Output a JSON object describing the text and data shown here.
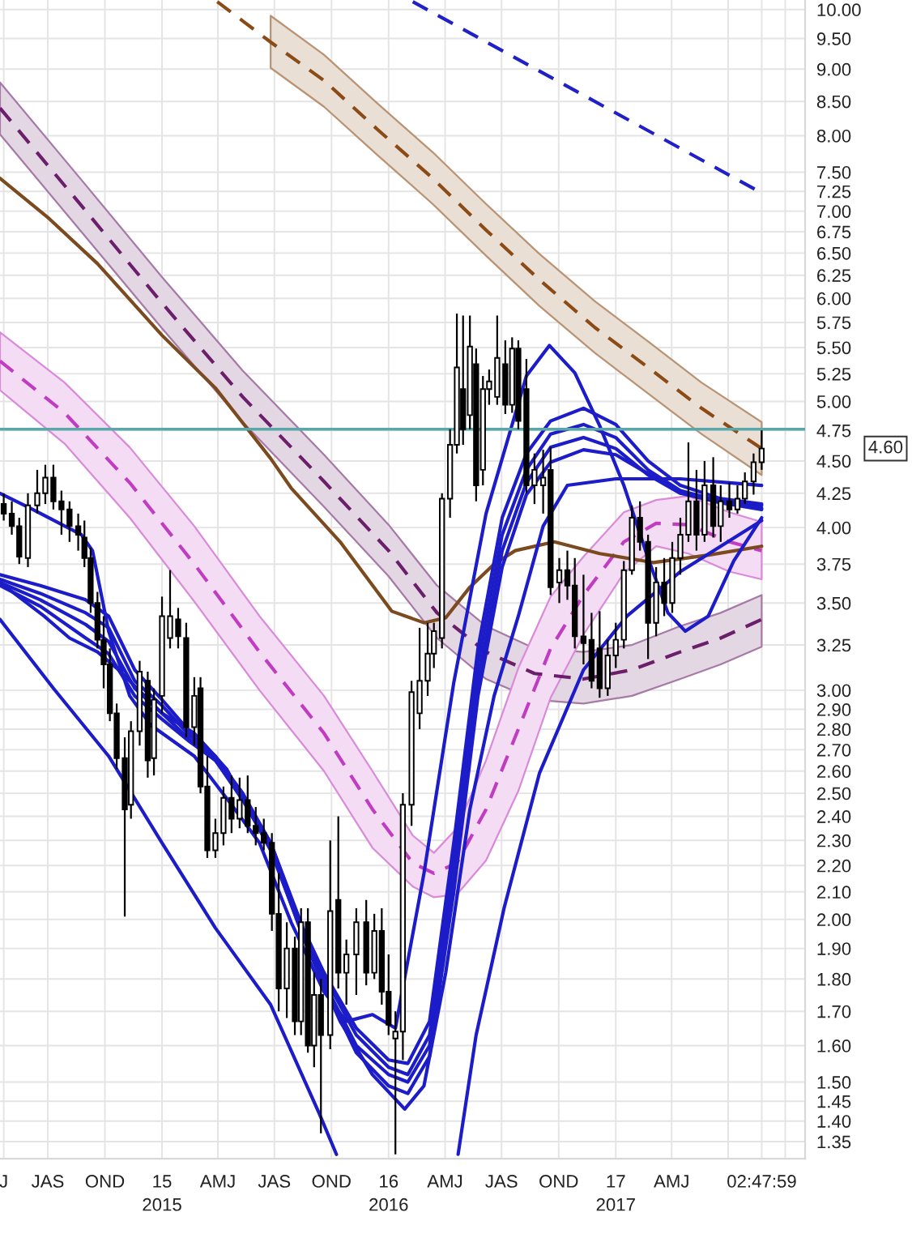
{
  "chart_data": {
    "type": "candlestick",
    "color": "#000000",
    "x": [
      "2014-04-21",
      "2014-05-04",
      "2014-05-16",
      "2014-05-30",
      "2014-06-14",
      "2014-06-27",
      "2014-07-10",
      "2014-07-23",
      "2014-08-05",
      "2014-08-19",
      "2014-08-29",
      "2014-09-08",
      "2014-09-19",
      "2014-09-29",
      "2014-10-09",
      "2014-10-20",
      "2014-11-02",
      "2014-11-12",
      "2014-11-26",
      "2014-12-09",
      "2014-12-19",
      "2015-01-01",
      "2015-01-14",
      "2015-01-27",
      "2015-02-09",
      "2015-02-22",
      "2015-03-04",
      "2015-03-15",
      "2015-03-28",
      "2015-04-10",
      "2015-04-23",
      "2015-05-06",
      "2015-05-19",
      "2015-06-01",
      "2015-06-14",
      "2015-06-27",
      "2015-07-08",
      "2015-07-21",
      "2015-08-03",
      "2015-08-13",
      "2015-08-24",
      "2015-09-03",
      "2015-09-14",
      "2015-09-29",
      "2015-10-12",
      "2015-10-25",
      "2015-11-10",
      "2015-11-26",
      "2015-12-09",
      "2015-12-21",
      "2016-01-01",
      "2016-01-12",
      "2016-01-24",
      "2016-02-07",
      "2016-02-20",
      "2016-03-04",
      "2016-03-14",
      "2016-03-27",
      "2016-04-09",
      "2016-04-20",
      "2016-04-30",
      "2016-05-11",
      "2016-05-21",
      "2016-06-01",
      "2016-06-11",
      "2016-06-24",
      "2016-07-07",
      "2016-07-18",
      "2016-07-28",
      "2016-08-10",
      "2016-08-23",
      "2016-09-06",
      "2016-09-18",
      "2016-10-02",
      "2016-10-15",
      "2016-10-27",
      "2016-11-10",
      "2016-11-23",
      "2016-12-06",
      "2016-12-19",
      "2017-01-01",
      "2017-01-14",
      "2017-01-27",
      "2017-02-09",
      "2017-02-22",
      "2017-03-07",
      "2017-03-20",
      "2017-04-02",
      "2017-04-15",
      "2017-04-28",
      "2017-05-11",
      "2017-05-24",
      "2017-06-07",
      "2017-06-19",
      "2017-07-03",
      "2017-07-16",
      "2017-07-28",
      "2017-08-11",
      "2017-08-24"
    ],
    "ohlc": [
      [
        4.17,
        4.25,
        4.05,
        4.1
      ],
      [
        4.1,
        4.19,
        3.95,
        4.01
      ],
      [
        4.01,
        4.07,
        3.75,
        3.8
      ],
      [
        3.79,
        4.25,
        3.73,
        4.16
      ],
      [
        4.16,
        4.43,
        4.1,
        4.25
      ],
      [
        4.25,
        4.47,
        4.17,
        4.37
      ],
      [
        4.37,
        4.47,
        4.13,
        4.19
      ],
      [
        4.19,
        4.27,
        3.95,
        4.13
      ],
      [
        4.13,
        4.19,
        3.9,
        4.01
      ],
      [
        4.01,
        4.1,
        3.84,
        3.95
      ],
      [
        3.93,
        4.05,
        3.73,
        3.79
      ],
      [
        3.79,
        3.86,
        3.44,
        3.5
      ],
      [
        3.5,
        3.57,
        3.23,
        3.28
      ],
      [
        3.28,
        3.42,
        3.01,
        3.14
      ],
      [
        3.14,
        3.23,
        2.84,
        2.88
      ],
      [
        2.88,
        2.93,
        2.61,
        2.66
      ],
      [
        2.66,
        2.76,
        2.01,
        2.43
      ],
      [
        2.45,
        2.84,
        2.39,
        2.79
      ],
      [
        2.79,
        3.16,
        2.72,
        3.1
      ],
      [
        3.05,
        3.1,
        2.57,
        2.65
      ],
      [
        2.66,
        3.01,
        2.58,
        2.95
      ],
      [
        2.97,
        3.54,
        2.88,
        3.42
      ],
      [
        3.29,
        3.71,
        3.23,
        3.42
      ],
      [
        3.4,
        3.47,
        3.23,
        3.3
      ],
      [
        3.29,
        3.38,
        2.76,
        2.81
      ],
      [
        2.81,
        3.07,
        2.72,
        2.97
      ],
      [
        3.01,
        3.07,
        2.5,
        2.53
      ],
      [
        2.53,
        2.67,
        2.23,
        2.26
      ],
      [
        2.26,
        2.39,
        2.23,
        2.33
      ],
      [
        2.33,
        2.53,
        2.28,
        2.48
      ],
      [
        2.48,
        2.58,
        2.33,
        2.39
      ],
      [
        2.39,
        2.57,
        2.35,
        2.47
      ],
      [
        2.47,
        2.58,
        2.33,
        2.36
      ],
      [
        2.36,
        2.44,
        2.28,
        2.33
      ],
      [
        2.33,
        2.39,
        2.26,
        2.29
      ],
      [
        2.29,
        2.33,
        1.96,
        2.02
      ],
      [
        2.02,
        2.17,
        1.7,
        1.77
      ],
      [
        1.77,
        1.99,
        1.68,
        1.9
      ],
      [
        1.9,
        1.94,
        1.63,
        1.67
      ],
      [
        1.67,
        2.04,
        1.63,
        1.99
      ],
      [
        1.99,
        2.04,
        1.58,
        1.6
      ],
      [
        1.6,
        1.82,
        1.54,
        1.75
      ],
      [
        1.75,
        1.8,
        1.37,
        1.63
      ],
      [
        1.63,
        2.3,
        1.59,
        2.03
      ],
      [
        2.07,
        2.4,
        1.77,
        1.82
      ],
      [
        1.82,
        1.93,
        1.72,
        1.88
      ],
      [
        1.88,
        2.04,
        1.75,
        1.99
      ],
      [
        1.99,
        2.07,
        1.78,
        1.82
      ],
      [
        1.82,
        2.02,
        1.8,
        1.96
      ],
      [
        1.96,
        2.04,
        1.72,
        1.76
      ],
      [
        1.76,
        1.88,
        1.63,
        1.66
      ],
      [
        1.62,
        1.7,
        1.32,
        1.64
      ],
      [
        1.64,
        2.5,
        1.56,
        2.45
      ],
      [
        2.45,
        3.05,
        2.36,
        2.99
      ],
      [
        2.88,
        3.35,
        2.8,
        3.05
      ],
      [
        3.05,
        3.38,
        2.97,
        3.2
      ],
      [
        3.2,
        3.38,
        3.12,
        3.33
      ],
      [
        3.29,
        4.25,
        3.23,
        4.21
      ],
      [
        4.21,
        4.76,
        4.07,
        4.63
      ],
      [
        4.63,
        5.84,
        4.56,
        5.31
      ],
      [
        5.11,
        5.82,
        4.63,
        4.76
      ],
      [
        4.88,
        5.82,
        4.76,
        5.51
      ],
      [
        5.34,
        5.49,
        4.19,
        4.31
      ],
      [
        4.43,
        5.23,
        4.31,
        5.11
      ],
      [
        5.11,
        5.29,
        4.97,
        5.18
      ],
      [
        5.04,
        5.82,
        4.97,
        5.4
      ],
      [
        5.34,
        5.57,
        4.89,
        4.97
      ],
      [
        4.97,
        5.6,
        4.9,
        5.49
      ],
      [
        5.49,
        5.57,
        4.76,
        4.83
      ],
      [
        5.11,
        5.39,
        4.25,
        4.31
      ],
      [
        4.31,
        4.56,
        4.17,
        4.43
      ],
      [
        4.31,
        4.59,
        4.1,
        4.37
      ],
      [
        4.43,
        4.61,
        3.55,
        3.6
      ],
      [
        3.63,
        3.79,
        3.5,
        3.71
      ],
      [
        3.71,
        3.84,
        3.52,
        3.61
      ],
      [
        3.61,
        3.79,
        3.23,
        3.3
      ],
      [
        3.3,
        3.68,
        3.14,
        3.26
      ],
      [
        3.28,
        3.44,
        3.01,
        3.05
      ],
      [
        3.23,
        3.45,
        2.96,
        3.01
      ],
      [
        3.01,
        3.28,
        2.97,
        3.19
      ],
      [
        3.19,
        3.38,
        3.12,
        3.28
      ],
      [
        3.28,
        3.77,
        3.23,
        3.71
      ],
      [
        3.71,
        4.16,
        3.68,
        4.07
      ],
      [
        4.07,
        4.19,
        3.84,
        3.9
      ],
      [
        3.9,
        3.95,
        3.17,
        3.38
      ],
      [
        3.38,
        3.73,
        3.3,
        3.63
      ],
      [
        3.63,
        3.79,
        3.42,
        3.5
      ],
      [
        3.5,
        3.9,
        3.44,
        3.79
      ],
      [
        3.79,
        4.07,
        3.68,
        3.95
      ],
      [
        3.95,
        4.65,
        3.9,
        4.19
      ],
      [
        4.19,
        4.43,
        3.84,
        3.95
      ],
      [
        3.95,
        4.5,
        3.9,
        4.31
      ],
      [
        4.31,
        4.53,
        3.93,
        4.01
      ],
      [
        4.01,
        4.31,
        3.9,
        4.19
      ],
      [
        4.19,
        4.33,
        4.07,
        4.13
      ],
      [
        4.13,
        4.31,
        4.1,
        4.21
      ],
      [
        4.21,
        4.41,
        4.17,
        4.34
      ],
      [
        4.34,
        4.56,
        4.24,
        4.49
      ],
      [
        4.49,
        4.75,
        4.43,
        4.6
      ]
    ],
    "series": [
      {
        "type": "line",
        "color": "#8a4b16",
        "line_style": "dashed",
        "x": [
          "2015-03-31",
          "2015-05-11",
          "2015-06-25",
          "2015-09-19",
          "2015-12-14",
          "2016-03-12",
          "2016-06-06",
          "2016-08-31",
          "2016-11-28",
          "2017-02-22",
          "2017-05-19",
          "2017-08-24"
        ],
        "values": [
          10.14,
          9.8,
          9.44,
          8.82,
          8.09,
          7.42,
          6.77,
          6.2,
          5.7,
          5.31,
          4.94,
          4.6
        ],
        "upper": [
          null,
          null,
          9.89,
          9.23,
          8.47,
          7.77,
          7.09,
          6.49,
          5.97,
          5.56,
          5.17,
          4.82
        ],
        "lower": [
          null,
          null,
          9.02,
          8.42,
          7.73,
          7.09,
          6.47,
          5.92,
          5.45,
          5.07,
          4.72,
          4.39
        ]
      },
      {
        "type": "line",
        "color": "#6b1f6b",
        "line_style": "dashed",
        "x": [
          "2014-04-15",
          "2014-08-24",
          "2015-01-01",
          "2015-05-11",
          "2015-09-19",
          "2016-01-01",
          "2016-03-19",
          "2016-06-06",
          "2016-08-23",
          "2016-11-10",
          "2017-01-27",
          "2017-04-15",
          "2017-06-19",
          "2017-08-24"
        ],
        "values": [
          8.4,
          7.07,
          5.95,
          5.04,
          4.34,
          3.84,
          3.44,
          3.21,
          3.09,
          3.06,
          3.11,
          3.21,
          3.29,
          3.4
        ],
        "upper": [
          8.79,
          7.4,
          6.23,
          5.28,
          4.55,
          4.02,
          3.61,
          3.36,
          3.23,
          3.21,
          3.25,
          3.36,
          3.44,
          3.55
        ],
        "lower": [
          8.02,
          6.75,
          5.69,
          4.82,
          4.15,
          3.67,
          3.29,
          3.06,
          2.95,
          2.93,
          2.97,
          3.06,
          3.14,
          3.24
        ]
      },
      {
        "type": "line",
        "color": "#c03cc0",
        "line_style": "dashed",
        "x": [
          "2014-04-15",
          "2014-07-28",
          "2014-11-10",
          "2015-02-22",
          "2015-06-07",
          "2015-09-19",
          "2015-12-06",
          "2016-02-09",
          "2016-03-14",
          "2016-04-20",
          "2016-06-06",
          "2016-07-28",
          "2016-09-18",
          "2016-11-10",
          "2017-01-14",
          "2017-03-07",
          "2017-04-28",
          "2017-07-03",
          "2017-08-24"
        ],
        "values": [
          5.37,
          4.9,
          4.33,
          3.75,
          3.21,
          2.78,
          2.43,
          2.21,
          2.17,
          2.21,
          2.43,
          2.8,
          3.23,
          3.55,
          3.9,
          4.03,
          4.02,
          3.9,
          3.84
        ],
        "upper": [
          5.65,
          5.17,
          4.61,
          4.01,
          3.42,
          2.97,
          2.6,
          2.32,
          2.25,
          2.35,
          2.65,
          3.12,
          3.54,
          3.8,
          4.11,
          4.2,
          4.23,
          4.11,
          4.04
        ],
        "lower": [
          5.1,
          4.64,
          4.07,
          3.51,
          3.0,
          2.6,
          2.27,
          2.12,
          2.08,
          2.09,
          2.22,
          2.51,
          2.96,
          3.31,
          3.69,
          3.87,
          3.82,
          3.7,
          3.65
        ]
      },
      {
        "type": "line",
        "color": "#7b4a1e",
        "x": [
          "2014-04-15",
          "2014-07-03",
          "2014-09-19",
          "2015-01-01",
          "2015-03-28",
          "2015-06-25",
          "2015-07-28",
          "2015-10-15",
          "2016-01-06",
          "2016-02-27",
          "2016-04-02",
          "2016-05-11",
          "2016-06-19",
          "2016-07-23",
          "2016-09-24",
          "2016-12-06",
          "2017-03-02",
          "2017-05-30",
          "2017-08-24"
        ],
        "values": [
          7.42,
          6.91,
          6.38,
          5.62,
          5.12,
          4.52,
          4.29,
          3.9,
          3.45,
          3.38,
          3.41,
          3.6,
          3.75,
          3.84,
          3.9,
          3.82,
          3.76,
          3.81,
          3.87
        ]
      },
      {
        "type": "line",
        "color": "#2020c8",
        "line_style": "dashed",
        "x": [
          "2016-02-09",
          "2017-08-24"
        ],
        "values": [
          10.14,
          7.23
        ]
      },
      {
        "type": "line",
        "color": "#1c1cc8",
        "x": [
          "2014-04-15",
          "2014-06-07",
          "2014-08-24",
          "2014-09-11",
          "2014-10-07",
          "2014-11-10",
          "2014-12-14",
          "2015-02-22",
          "2015-04-23",
          "2015-06-07",
          "2015-07-28",
          "2015-09-19",
          "2015-10-25",
          "2015-12-06",
          "2016-01-12",
          "2016-02-27",
          "2016-04-15",
          "2016-06-06",
          "2016-08-10",
          "2016-09-16",
          "2016-10-27",
          "2016-12-06",
          "2017-01-14",
          "2017-02-22",
          "2017-03-26",
          "2017-04-23",
          "2017-05-30",
          "2017-07-10",
          "2017-08-24"
        ],
        "values": [
          4.25,
          4.13,
          3.95,
          3.84,
          3.33,
          2.97,
          2.82,
          2.67,
          2.45,
          2.29,
          1.99,
          1.76,
          1.67,
          1.69,
          1.65,
          2.17,
          3.04,
          4.1,
          5.23,
          5.52,
          5.26,
          4.79,
          4.31,
          3.79,
          3.44,
          3.33,
          3.42,
          3.77,
          4.07
        ]
      },
      {
        "type": "line",
        "color": "#1c1cc8",
        "x": [
          "2014-04-15",
          "2014-06-19",
          "2014-08-31",
          "2014-10-07",
          "2014-11-18",
          "2015-01-01",
          "2015-02-14",
          "2015-03-28",
          "2015-05-11",
          "2015-06-25",
          "2015-08-16",
          "2015-09-19",
          "2015-11-10",
          "2016-01-01",
          "2016-02-01",
          "2016-03-07",
          "2016-04-15",
          "2016-05-24",
          "2016-07-02",
          "2016-08-10",
          "2016-09-18",
          "2016-11-10",
          "2017-01-01",
          "2017-02-22",
          "2017-04-15",
          "2017-06-19",
          "2017-08-24"
        ],
        "values": [
          3.68,
          3.61,
          3.52,
          3.42,
          3.11,
          2.95,
          2.79,
          2.67,
          2.5,
          2.29,
          1.97,
          1.82,
          1.65,
          1.56,
          1.55,
          1.67,
          2.29,
          3.23,
          4.07,
          4.56,
          4.83,
          4.94,
          4.8,
          4.5,
          4.31,
          4.21,
          4.17
        ]
      },
      {
        "type": "line",
        "color": "#1c1cc8",
        "x": [
          "2014-04-15",
          "2014-06-19",
          "2014-08-31",
          "2014-10-07",
          "2014-11-18",
          "2015-01-01",
          "2015-02-14",
          "2015-03-28",
          "2015-05-11",
          "2015-06-25",
          "2015-08-16",
          "2015-09-19",
          "2015-11-10",
          "2016-01-01",
          "2016-02-01",
          "2016-03-07",
          "2016-04-15",
          "2016-05-24",
          "2016-07-02",
          "2016-08-10",
          "2016-09-18",
          "2016-11-10",
          "2017-01-01",
          "2017-02-22",
          "2017-04-15",
          "2017-06-19",
          "2017-08-24"
        ],
        "values": [
          3.65,
          3.56,
          3.44,
          3.35,
          3.05,
          2.92,
          2.77,
          2.66,
          2.49,
          2.29,
          1.96,
          1.81,
          1.63,
          1.54,
          1.52,
          1.63,
          2.23,
          3.14,
          3.95,
          4.43,
          4.72,
          4.8,
          4.69,
          4.43,
          4.27,
          4.19,
          4.16
        ]
      },
      {
        "type": "line",
        "color": "#1c1cc8",
        "x": [
          "2014-04-15",
          "2014-06-19",
          "2014-08-31",
          "2014-10-07",
          "2014-11-18",
          "2015-01-01",
          "2015-02-14",
          "2015-03-28",
          "2015-05-11",
          "2015-06-25",
          "2015-08-16",
          "2015-09-19",
          "2015-11-10",
          "2016-01-01",
          "2016-02-01",
          "2016-03-07",
          "2016-04-15",
          "2016-05-24",
          "2016-07-02",
          "2016-08-10",
          "2016-09-18",
          "2016-11-10",
          "2017-01-01",
          "2017-02-22",
          "2017-04-15",
          "2017-06-19",
          "2017-08-24"
        ],
        "values": [
          3.63,
          3.52,
          3.37,
          3.27,
          3.01,
          2.88,
          2.75,
          2.65,
          2.48,
          2.28,
          1.95,
          1.79,
          1.6,
          1.52,
          1.5,
          1.6,
          2.17,
          3.05,
          3.84,
          4.33,
          4.61,
          4.69,
          4.6,
          4.39,
          4.25,
          4.18,
          4.14
        ]
      },
      {
        "type": "line",
        "color": "#1c1cc8",
        "x": [
          "2014-04-15",
          "2014-06-19",
          "2014-08-31",
          "2014-10-07",
          "2014-11-18",
          "2015-01-01",
          "2015-02-14",
          "2015-03-28",
          "2015-05-11",
          "2015-06-25",
          "2015-08-16",
          "2015-09-19",
          "2015-11-10",
          "2016-01-01",
          "2016-02-01",
          "2016-03-07",
          "2016-04-15",
          "2016-05-24",
          "2016-07-02",
          "2016-08-10",
          "2016-09-18",
          "2016-11-10",
          "2017-01-01",
          "2017-02-22",
          "2017-04-15",
          "2017-06-19",
          "2017-08-24"
        ],
        "values": [
          3.61,
          3.48,
          3.29,
          3.2,
          2.97,
          2.85,
          2.74,
          2.65,
          2.47,
          2.27,
          1.94,
          1.78,
          1.58,
          1.49,
          1.47,
          1.57,
          2.1,
          2.97,
          3.73,
          4.24,
          4.49,
          4.59,
          4.55,
          4.4,
          4.26,
          4.18,
          4.13
        ]
      },
      {
        "type": "line",
        "color": "#1c1cc8",
        "x": [
          "2014-04-15",
          "2014-06-25",
          "2014-08-05",
          "2014-09-19",
          "2014-10-23",
          "2015-01-01",
          "2015-02-22",
          "2015-04-15",
          "2015-06-25",
          "2015-08-24",
          "2015-10-15",
          "2015-12-06",
          "2016-01-27",
          "2016-02-27",
          "2016-04-02",
          "2016-05-11",
          "2016-06-19",
          "2016-07-28",
          "2016-09-06",
          "2016-10-15",
          "2017-01-01",
          "2017-04-15",
          "2017-07-03",
          "2017-08-24"
        ],
        "values": [
          3.63,
          3.42,
          3.29,
          3.21,
          3.11,
          2.88,
          2.78,
          2.61,
          2.26,
          1.9,
          1.67,
          1.52,
          1.43,
          1.49,
          1.82,
          2.43,
          2.97,
          3.42,
          4.01,
          4.31,
          4.36,
          4.36,
          4.33,
          4.31
        ]
      },
      {
        "type": "line",
        "color": "#1c1cc8",
        "x": [
          "2014-04-15",
          "2014-07-10",
          "2014-10-07",
          "2015-01-01",
          "2015-03-28",
          "2015-06-25",
          "2015-09-11",
          "2015-10-09",
          "2016-01-14",
          "2016-04-22",
          "2016-05-21",
          "2016-07-05",
          "2016-08-31",
          "2016-11-10",
          "2017-01-19",
          "2017-04-15",
          "2017-08-24"
        ],
        "values": [
          3.4,
          3.01,
          2.67,
          2.29,
          1.97,
          1.72,
          1.42,
          1.32,
          null,
          1.32,
          1.63,
          2.04,
          2.59,
          3.11,
          3.42,
          3.7,
          4.05
        ]
      }
    ],
    "xlim": [
      "2014-04-15",
      "2017-11-02"
    ],
    "ylim": [
      1.31,
      10.17
    ],
    "log": "y",
    "grid": true,
    "xticks": [
      {
        "value": "2014-04-21",
        "label": "J"
      },
      {
        "value": "2014-07-01",
        "label": "JAS"
      },
      {
        "value": "2014-10-01",
        "label": "OND"
      },
      {
        "value": "2015-01-01",
        "label": "15\n2015"
      },
      {
        "value": "2015-04-01",
        "label": "AMJ"
      },
      {
        "value": "2015-07-01",
        "label": "JAS"
      },
      {
        "value": "2015-10-01",
        "label": "OND"
      },
      {
        "value": "2016-01-01",
        "label": "16\n2016"
      },
      {
        "value": "2016-04-01",
        "label": "AMJ"
      },
      {
        "value": "2016-07-01",
        "label": "JAS"
      },
      {
        "value": "2016-10-01",
        "label": "OND"
      },
      {
        "value": "2017-01-01",
        "label": "17\n2017"
      },
      {
        "value": "2017-04-01",
        "label": "AMJ"
      },
      {
        "value": "2017-07-01",
        "label": null
      },
      {
        "value": "2017-08-24T02:47",
        "label": "02:47:59"
      },
      {
        "value": "2017-10-01",
        "label": null
      }
    ],
    "yticks": [
      {
        "value": 10,
        "label": "10.00"
      },
      {
        "value": 9.5,
        "label": "9.50"
      },
      {
        "value": 9,
        "label": "9.00"
      },
      {
        "value": 8.5,
        "label": "8.50"
      },
      {
        "value": 8,
        "label": "8.00"
      },
      {
        "value": 7.5,
        "label": "7.50"
      },
      {
        "value": 7.25,
        "label": "7.25"
      },
      {
        "value": 7,
        "label": "7.00"
      },
      {
        "value": 6.75,
        "label": "6.75"
      },
      {
        "value": 6.5,
        "label": "6.50"
      },
      {
        "value": 6.25,
        "label": "6.25"
      },
      {
        "value": 6,
        "label": "6.00"
      },
      {
        "value": 5.75,
        "label": "5.75"
      },
      {
        "value": 5.5,
        "label": "5.50"
      },
      {
        "value": 5.25,
        "label": "5.25"
      },
      {
        "value": 5,
        "label": "5.00"
      },
      {
        "value": 4.75,
        "label": "4.75"
      },
      {
        "value": 4.5,
        "label": "4.50"
      },
      {
        "value": 4.25,
        "label": "4.25"
      },
      {
        "value": 4,
        "label": "4.00"
      },
      {
        "value": 3.75,
        "label": "3.75"
      },
      {
        "value": 3.5,
        "label": "3.50"
      },
      {
        "value": 3.25,
        "label": "3.25"
      },
      {
        "value": 3,
        "label": "3.00"
      },
      {
        "value": 2.9,
        "label": "2.90"
      },
      {
        "value": 2.8,
        "label": "2.80"
      },
      {
        "value": 2.7,
        "label": "2.70"
      },
      {
        "value": 2.6,
        "label": "2.60"
      },
      {
        "value": 2.5,
        "label": "2.50"
      },
      {
        "value": 2.4,
        "label": "2.40"
      },
      {
        "value": 2.3,
        "label": "2.30"
      },
      {
        "value": 2.2,
        "label": "2.20"
      },
      {
        "value": 2.1,
        "label": "2.10"
      },
      {
        "value": 2,
        "label": "2.00"
      },
      {
        "value": 1.9,
        "label": "1.90"
      },
      {
        "value": 1.8,
        "label": "1.80"
      },
      {
        "value": 1.7,
        "label": "1.70"
      },
      {
        "value": 1.6,
        "label": "1.60"
      },
      {
        "value": 1.5,
        "label": "1.50"
      },
      {
        "value": 1.45,
        "label": "1.45"
      },
      {
        "value": 1.4,
        "label": "1.40"
      },
      {
        "value": 1.35,
        "label": "1.35"
      }
    ],
    "ref_lines": [
      {
        "axis": "y",
        "value": 4.76,
        "color": "#5aa7aa"
      }
    ],
    "annotations": [
      "4.60"
    ]
  }
}
